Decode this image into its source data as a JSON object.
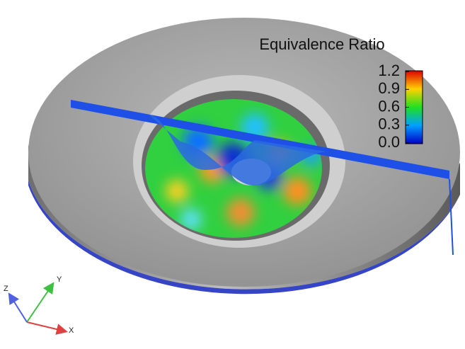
{
  "colorbar": {
    "title": "Equivalence Ratio",
    "range": [
      0,
      1.2
    ],
    "ticks": [
      {
        "value": 0,
        "label": "0.0"
      },
      0.3,
      0.6,
      0.9,
      1.2
    ]
  },
  "axes_triad": {
    "x": "X",
    "y": "Y",
    "z": "Z"
  }
}
